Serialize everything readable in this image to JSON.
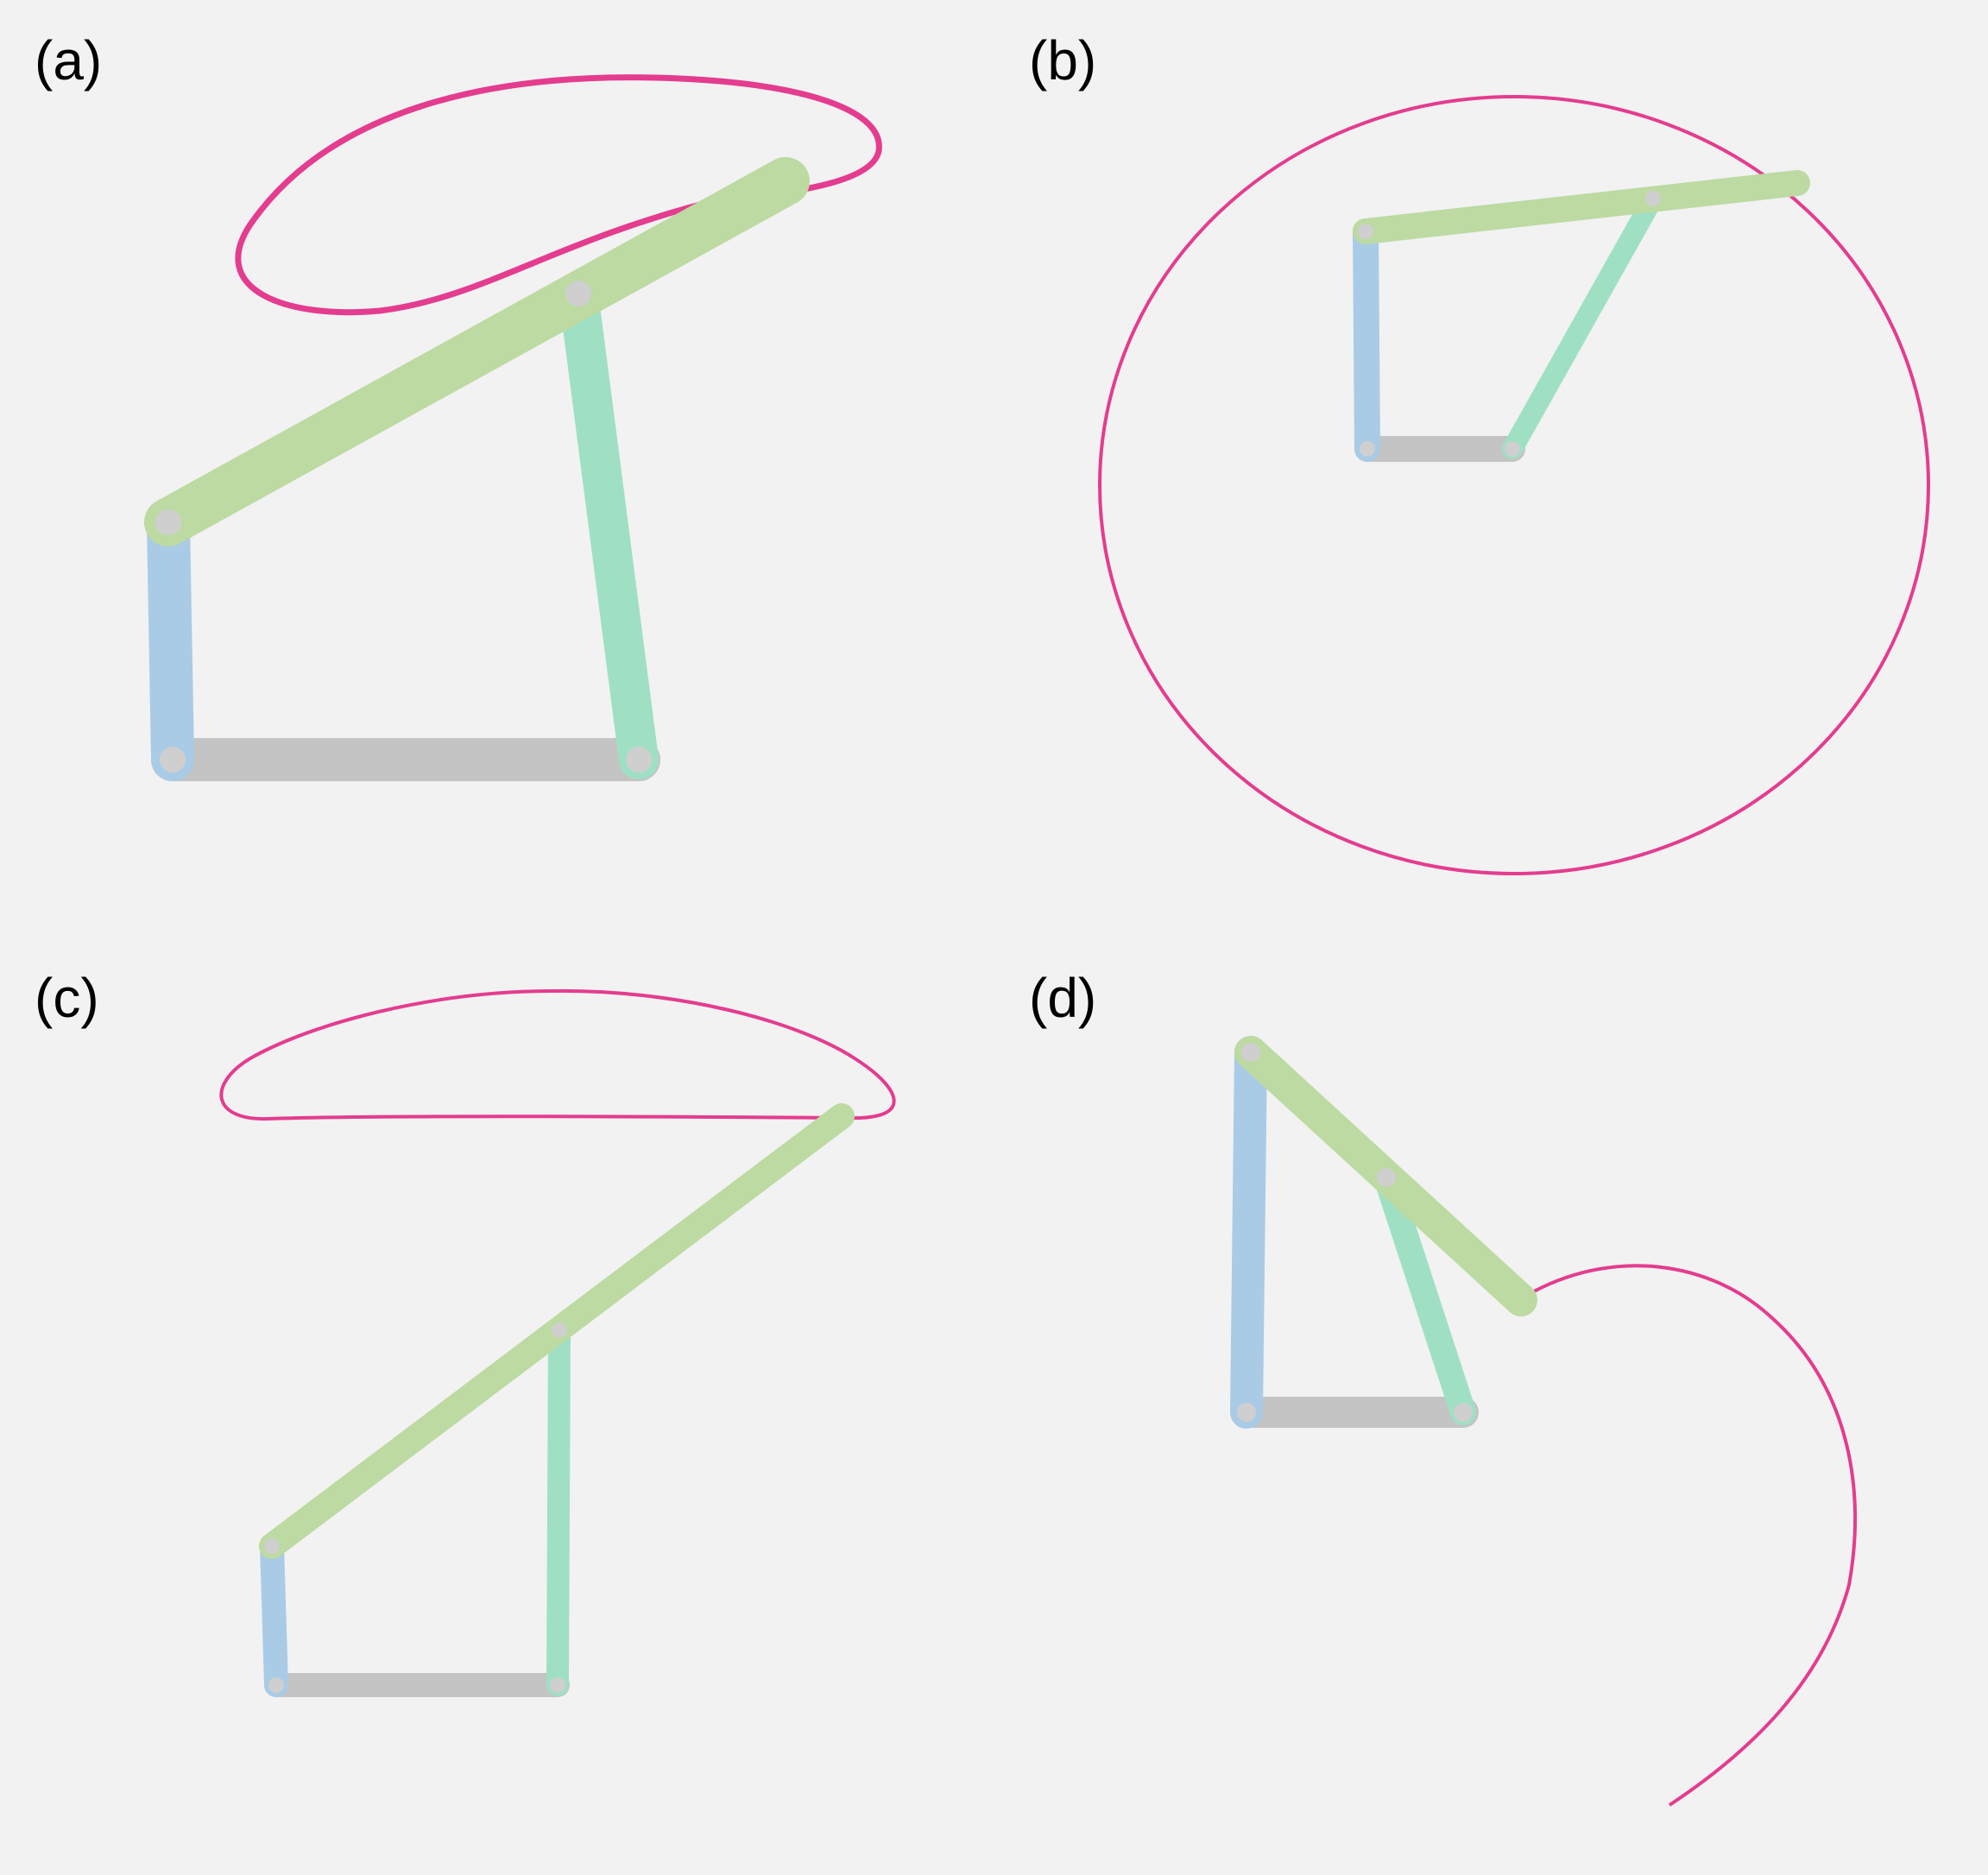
{
  "panels": [
    {
      "id": "a",
      "label": "(a)"
    },
    {
      "id": "b",
      "label": "(b)"
    },
    {
      "id": "c",
      "label": "(c)"
    },
    {
      "id": "d",
      "label": "(d)"
    }
  ],
  "colors": {
    "background": "#f2f2f2",
    "ground_link": "#c8c8c8",
    "input_link": "#a9cbe6",
    "coupler_link": "#bcdaa2",
    "output_link": "#9fe0c4",
    "joint": "#cfcfcf",
    "trace_curve": "#e43c8f"
  }
}
